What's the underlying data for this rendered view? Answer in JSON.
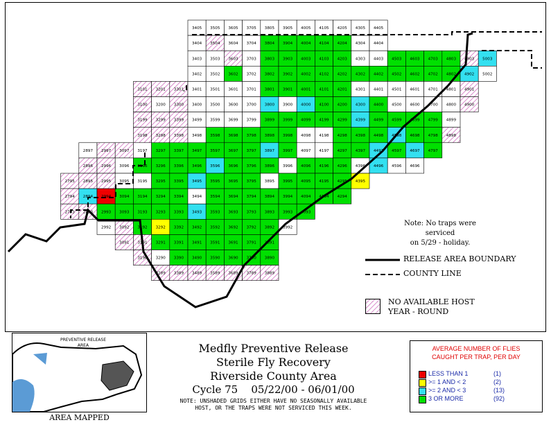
{
  "rows": [
    {
      "codes": [
        "3405",
        "3505",
        "3605",
        "3705",
        "3805",
        "3905",
        "4005",
        "4105",
        "4205",
        "4305",
        "4405"
      ]
    },
    {
      "codes": [
        "3404",
        "3504",
        "3604",
        "3704",
        "3804",
        "3904",
        "4004",
        "4104",
        "4204",
        "4304",
        "4404"
      ]
    },
    {
      "codes": [
        "3403",
        "3503",
        "3603",
        "3703",
        "3803",
        "3903",
        "4003",
        "4103",
        "4203",
        "4303",
        "4403",
        "4503",
        "4603",
        "4703",
        "4803",
        "4903",
        "5003"
      ]
    },
    {
      "codes": [
        "3402",
        "3502",
        "3602",
        "3702",
        "3802",
        "3902",
        "4002",
        "4102",
        "4202",
        "4302",
        "4402",
        "4502",
        "4602",
        "4702",
        "4802",
        "4902",
        "5002"
      ]
    },
    {
      "codes": [
        "3101",
        "3201",
        "3301",
        "3401",
        "3501",
        "3601",
        "3701",
        "3801",
        "3901",
        "4001",
        "4101",
        "4201",
        "4301",
        "4401",
        "4501",
        "4601",
        "4701",
        "4801",
        "4901"
      ]
    },
    {
      "codes": [
        "3100",
        "3200",
        "3300",
        "3400",
        "3500",
        "3600",
        "3700",
        "3800",
        "3900",
        "4000",
        "4100",
        "4200",
        "4300",
        "4400",
        "4500",
        "4600",
        "4700",
        "4800",
        "4900"
      ]
    },
    {
      "codes": [
        "3199",
        "3299",
        "3399",
        "3499",
        "3599",
        "3699",
        "3799",
        "3899",
        "3999",
        "4099",
        "4199",
        "4299",
        "4399",
        "4499",
        "4599",
        "4699",
        "4799",
        "4899"
      ]
    },
    {
      "codes": [
        "3198",
        "3298",
        "3398",
        "3498",
        "3598",
        "3698",
        "3798",
        "3898",
        "3998",
        "4098",
        "4198",
        "4298",
        "4398",
        "4498",
        "4598",
        "4698",
        "4798",
        "4898"
      ]
    },
    {
      "codes": [
        "2897",
        "2997",
        "3097",
        "3197",
        "3297",
        "3397",
        "3497",
        "3597",
        "3697",
        "3797",
        "3897",
        "3997",
        "4097",
        "4197",
        "4297",
        "4397",
        "4497",
        "4597",
        "4697",
        "4797"
      ]
    },
    {
      "codes": [
        "2896",
        "2996",
        "3096",
        "3196",
        "3296",
        "3396",
        "3496",
        "3596",
        "3696",
        "3796",
        "3896",
        "3996",
        "4096",
        "4196",
        "4296",
        "4396",
        "4496",
        "4596",
        "4696"
      ]
    },
    {
      "codes": [
        "2795",
        "2895",
        "2995",
        "3095",
        "3195",
        "3295",
        "3395",
        "3495",
        "3595",
        "3695",
        "3795",
        "3895",
        "3995",
        "4095",
        "4195",
        "4295",
        "4395"
      ]
    },
    {
      "codes": [
        "2794",
        "2894",
        "2994",
        "3094",
        "3194",
        "3294",
        "3394",
        "3494",
        "3594",
        "3694",
        "3794",
        "3894",
        "3994",
        "4094",
        "4194",
        "4294"
      ]
    },
    {
      "codes": [
        "2793",
        "2893",
        "2993",
        "3093",
        "3193",
        "3293",
        "3393",
        "3493",
        "3593",
        "3693",
        "3793",
        "3893",
        "3993",
        "4093"
      ]
    },
    {
      "codes": [
        "2992",
        "3092",
        "3192",
        "3292",
        "3392",
        "3492",
        "3592",
        "3692",
        "3792",
        "3892",
        "3992"
      ]
    },
    {
      "codes": [
        "3091",
        "3191",
        "3291",
        "3391",
        "3491",
        "3591",
        "3691",
        "3791",
        "3891"
      ]
    },
    {
      "codes": [
        "3190",
        "3290",
        "3390",
        "3490",
        "3590",
        "3690",
        "3790",
        "3890"
      ]
    },
    {
      "codes": [
        "3289",
        "3389",
        "3489",
        "3589",
        "3689",
        "3789",
        "3889"
      ]
    }
  ],
  "map_notes": {
    "line1": "Note: No traps were serviced",
    "line2": "on 5/29 - holiday."
  },
  "map_legend": {
    "release_boundary": "RELEASE AREA BOUNDARY",
    "county_line": "COUNTY LINE",
    "no_host_line1": "NO AVAILABLE HOST",
    "no_host_line2": "YEAR - ROUND"
  },
  "inset": {
    "label": "PREVENTIVE RELEASE AREA",
    "caption": "AREA MAPPED"
  },
  "title": {
    "line1": "Medfly Preventive Release",
    "line2": "Sterile Fly Recovery",
    "line3": "Riverside County Area",
    "cycle": "Cycle 75",
    "dates": "05/22/00 - 06/01/00",
    "note_line1": "NOTE: UNSHADED GRIDS EITHER HAVE NO SEASONALLY AVAILABLE",
    "note_line2": "HOST, OR THE TRAPS WERE NOT SERVICED THIS WEEK."
  },
  "legend": {
    "heading_line1": "AVERAGE NUMBER OF FLIES",
    "heading_line2": "CAUGHT PER TRAP, PER DAY",
    "items": [
      {
        "label": "LESS THAN 1",
        "count": "(1)",
        "color": "#ee0000"
      },
      {
        "label": ">= 1 AND < 2",
        "count": "(2)",
        "color": "#ffff00"
      },
      {
        "label": ">= 2 AND < 3",
        "count": "(13)",
        "color": "#33e0f0"
      },
      {
        "label": "3 OR MORE",
        "count": "(92)",
        "color": "#00e000"
      }
    ]
  },
  "colors": {
    "green": "#00e000",
    "cyan": "#33e0f0",
    "yellow": "#ffff00",
    "red": "#ee0000",
    "hatch": "#d070c0"
  }
}
